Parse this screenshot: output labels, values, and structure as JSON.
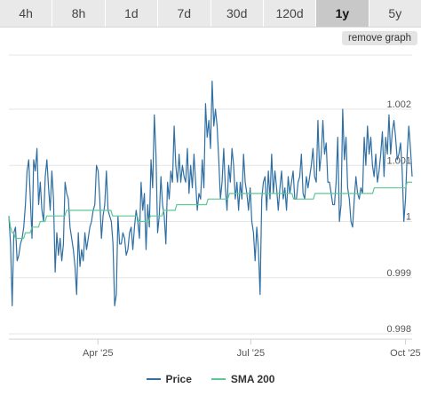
{
  "range_tabs": [
    {
      "label": "4h",
      "active": false
    },
    {
      "label": "8h",
      "active": false
    },
    {
      "label": "1d",
      "active": false
    },
    {
      "label": "7d",
      "active": false
    },
    {
      "label": "30d",
      "active": false
    },
    {
      "label": "120d",
      "active": false
    },
    {
      "label": "1y",
      "active": true
    },
    {
      "label": "5y",
      "active": false
    }
  ],
  "remove_graph_label": "remove graph",
  "colors": {
    "price": "#2f6fa3",
    "sma": "#5cc994"
  },
  "chart_data": {
    "type": "line",
    "title": "",
    "xlabel": "",
    "ylabel": "",
    "ylim": [
      0.998,
      1.002
    ],
    "y_ticks": [
      {
        "value": 1.002,
        "label": "1.002"
      },
      {
        "value": 1.001,
        "label": "1.001"
      },
      {
        "value": 1.0,
        "label": "1"
      },
      {
        "value": 0.999,
        "label": "0.999"
      },
      {
        "value": 0.998,
        "label": "0.998"
      }
    ],
    "x_ticks": [
      {
        "label": "Apr '25",
        "day": 53
      },
      {
        "label": "Jul '25",
        "day": 144
      },
      {
        "label": "Oct '25",
        "day": 236
      }
    ],
    "x_range_days": [
      0,
      240
    ],
    "series": [
      {
        "name": "Price",
        "values": [
          1.0001,
          0.9996,
          0.9985,
          0.9998,
          0.9999,
          0.9993,
          0.9994,
          0.9996,
          0.9997,
          0.9999,
          1.0003,
          1.0009,
          1.0011,
          1.0004,
          0.9997,
          1.0011,
          1.0009,
          1.0013,
          1.0003,
          1.0007,
          1.0002,
          1.0,
          1.0008,
          1.0011,
          1.0006,
          1.0002,
          1.0009,
          1.0004,
          0.9991,
          0.9998,
          0.9994,
          0.9997,
          0.9993,
          0.9996,
          1.0007,
          1.0005,
          1.0004,
          0.9999,
          0.9997,
          0.9995,
          0.9992,
          0.9987,
          0.9998,
          0.9992,
          0.9995,
          0.9993,
          0.9998,
          0.9995,
          0.9997,
          0.9999,
          1.0,
          1.0002,
          1.0003,
          1.001,
          1.0009,
          1.0004,
          0.9997,
          1.0001,
          1.0003,
          1.0009,
          1.0002,
          1.0001,
          1.0,
          0.9996,
          0.9985,
          0.9987,
          1.0001,
          0.9996,
          0.9996,
          0.9998,
          0.9997,
          0.9994,
          0.9995,
          0.9998,
          0.9999,
          0.9995,
          0.9999,
          1.0002,
          1.0,
          0.9997,
          1.0007,
          1.0002,
          1.0005,
          0.9995,
          1.0003,
          0.9999,
          1.0011,
          1.0006,
          1.0019,
          1.0012,
          0.9998,
          1.0001,
          1.0008,
          1.0003,
          1.0001,
          0.9996,
          1.0007,
          1.0004,
          1.0009,
          1.0007,
          1.0017,
          1.001,
          1.0007,
          1.0012,
          1.0007,
          1.001,
          1.0008,
          1.0007,
          1.0013,
          1.0005,
          1.001,
          1.0006,
          1.0012,
          1.0007,
          1.0002,
          1.0005,
          1.0004,
          1.0011,
          1.0006,
          1.0021,
          1.0015,
          1.0018,
          1.0013,
          1.0025,
          1.0017,
          1.002,
          1.0017,
          1.0011,
          1.0004,
          1.0007,
          1.0013,
          1.0006,
          1.0002,
          1.001,
          1.0007,
          1.0013,
          1.001,
          1.0004,
          1.0007,
          1.0002,
          1.0007,
          1.0004,
          1.0012,
          1.0007,
          1.0005,
          1.0002,
          1.0006,
          1.0,
          0.9998,
          0.9993,
          0.9999,
          0.9995,
          0.9987,
          1.0004,
          1.0007,
          1.0008,
          1.0002,
          1.0009,
          1.0004,
          1.0012,
          1.0005,
          1.0009,
          1.0006,
          1.0002,
          1.0006,
          1.0009,
          1.0004,
          1.0006,
          1.0002,
          1.0008,
          1.0005,
          1.0007,
          1.0009,
          1.0004,
          1.0004,
          1.0007,
          1.0008,
          1.0012,
          1.0005,
          1.0004,
          1.0008,
          1.0006,
          1.0008,
          1.001,
          1.0013,
          1.0008,
          1.0007,
          1.0018,
          1.0009,
          1.0012,
          1.0018,
          1.0012,
          1.0014,
          1.0007,
          1.0007,
          1.0005,
          1.0003,
          1.0003,
          1.0007,
          1.0015,
          1.0,
          1.0003,
          1.002,
          1.0011,
          1.0015,
          1.0006,
          1.0004,
          1.0,
          0.9999,
          1.0004,
          1.0008,
          1.0005,
          1.0004,
          1.0006,
          1.0005,
          1.0015,
          1.001,
          1.0017,
          1.0012,
          1.0015,
          1.001,
          1.0008,
          1.0012,
          1.0007,
          1.0009,
          1.0012,
          1.0016,
          1.0008,
          1.0015,
          1.0012,
          1.0019,
          1.0012,
          1.0016,
          1.0018,
          1.0015,
          1.0011,
          1.0012,
          1.0014,
          1.0009,
          1.0,
          1.0004,
          1.0012,
          1.0017,
          1.0013,
          1.0008
        ]
      },
      {
        "name": "SMA 200",
        "values": [
          1.0001,
          0.9999,
          0.9998,
          0.9998,
          0.9997,
          0.9997,
          0.9997,
          0.9997,
          0.9997,
          0.9997,
          0.9998,
          0.9998,
          0.9998,
          0.9998,
          0.9999,
          0.9999,
          0.9999,
          0.9999,
          0.9999,
          1.0,
          1.0,
          1.0,
          1.0,
          1.0001,
          1.0001,
          1.0001,
          1.0001,
          1.0001,
          1.0001,
          1.0001,
          1.0001,
          1.0001,
          1.0001,
          1.0001,
          1.0001,
          1.0002,
          1.0002,
          1.0002,
          1.0002,
          1.0002,
          1.0002,
          1.0002,
          1.0002,
          1.0002,
          1.0002,
          1.0002,
          1.0002,
          1.0002,
          1.0002,
          1.0002,
          1.0002,
          1.0002,
          1.0002,
          1.0002,
          1.0002,
          1.0002,
          1.0002,
          1.0002,
          1.0002,
          1.0002,
          1.0002,
          1.0002,
          1.0002,
          1.0001,
          1.0001,
          1.0001,
          1.0001,
          1.0001,
          1.0001,
          1.0001,
          1.0001,
          1.0001,
          1.0001,
          1.0001,
          1.0001,
          1.0001,
          1.0001,
          1.0001,
          1.0001,
          1.0,
          1.0,
          1.0,
          1.0,
          1.0,
          1.0,
          1.0,
          1.0001,
          1.0001,
          1.0001,
          1.0001,
          1.0001,
          1.0001,
          1.0001,
          1.0001,
          1.0002,
          1.0002,
          1.0002,
          1.0002,
          1.0002,
          1.0002,
          1.0002,
          1.0002,
          1.0003,
          1.0003,
          1.0003,
          1.0003,
          1.0003,
          1.0003,
          1.0003,
          1.0003,
          1.0003,
          1.0003,
          1.0003,
          1.0003,
          1.0003,
          1.0003,
          1.0003,
          1.0003,
          1.0003,
          1.0003,
          1.0003,
          1.0004,
          1.0004,
          1.0004,
          1.0004,
          1.0004,
          1.0004,
          1.0004,
          1.0004,
          1.0004,
          1.0004,
          1.0004,
          1.0004,
          1.0004,
          1.0005,
          1.0005,
          1.0005,
          1.0005,
          1.0005,
          1.0005,
          1.0005,
          1.0005,
          1.0005,
          1.0005,
          1.0005,
          1.0005,
          1.0005,
          1.0005,
          1.0005,
          1.0005,
          1.0005,
          1.0005,
          1.0005,
          1.0005,
          1.0005,
          1.0005,
          1.0005,
          1.0005,
          1.0005,
          1.0005,
          1.0005,
          1.0005,
          1.0005,
          1.0005,
          1.0005,
          1.0005,
          1.0005,
          1.0005,
          1.0005,
          1.0005,
          1.0005,
          1.0005,
          1.0005,
          1.0004,
          1.0004,
          1.0004,
          1.0004,
          1.0004,
          1.0004,
          1.0004,
          1.0004,
          1.0004,
          1.0004,
          1.0004,
          1.0004,
          1.0004,
          1.0005,
          1.0005,
          1.0005,
          1.0005,
          1.0005,
          1.0005,
          1.0005,
          1.0005,
          1.0005,
          1.0005,
          1.0005,
          1.0005,
          1.0005,
          1.0005,
          1.0005,
          1.0005,
          1.0005,
          1.0005,
          1.0005,
          1.0005,
          1.0005,
          1.0005,
          1.0005,
          1.0005,
          1.0005,
          1.0005,
          1.0005,
          1.0005,
          1.0005,
          1.0005,
          1.0005,
          1.0005,
          1.0005,
          1.0005,
          1.0005,
          1.0005,
          1.0006,
          1.0006,
          1.0006,
          1.0006,
          1.0006,
          1.0006,
          1.0006,
          1.0006,
          1.0006,
          1.0006,
          1.0006,
          1.0006,
          1.0006,
          1.0006,
          1.0006,
          1.0006,
          1.0006,
          1.0006,
          1.0006,
          1.0006,
          1.0007,
          1.0007,
          1.0007,
          1.0007
        ]
      }
    ],
    "grid": true,
    "legend_position": "bottom"
  }
}
